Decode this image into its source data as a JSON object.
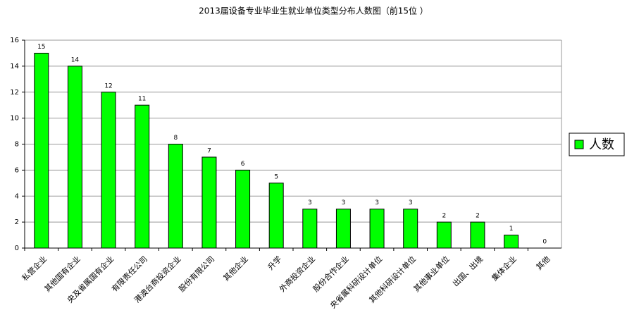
{
  "chart_data": {
    "type": "bar",
    "title": "2013届设备专业毕业生就业单位类型分布人数图（前15位 ）",
    "categories": [
      "私营企业",
      "其他国有企业",
      "央及省属国有企业",
      "有限责任公司",
      "港澳台商投资企业",
      "股份有限公司",
      "其他企业",
      "升学",
      "外商投资企业",
      "股份合作企业",
      "央省属科研设计单位",
      "其他科研设计单位",
      "其他事业单位",
      "出国、出境",
      "集体企业",
      "其他"
    ],
    "series": [
      {
        "name": "人数",
        "color": "#00ff00",
        "values": [
          15,
          14,
          12,
          11,
          8,
          7,
          6,
          5,
          3,
          3,
          3,
          3,
          2,
          2,
          1,
          0
        ]
      }
    ],
    "ylim": [
      0,
      16
    ],
    "yticks": [
      0,
      2,
      4,
      6,
      8,
      10,
      12,
      14,
      16
    ],
    "grid": true,
    "legend": "right"
  }
}
